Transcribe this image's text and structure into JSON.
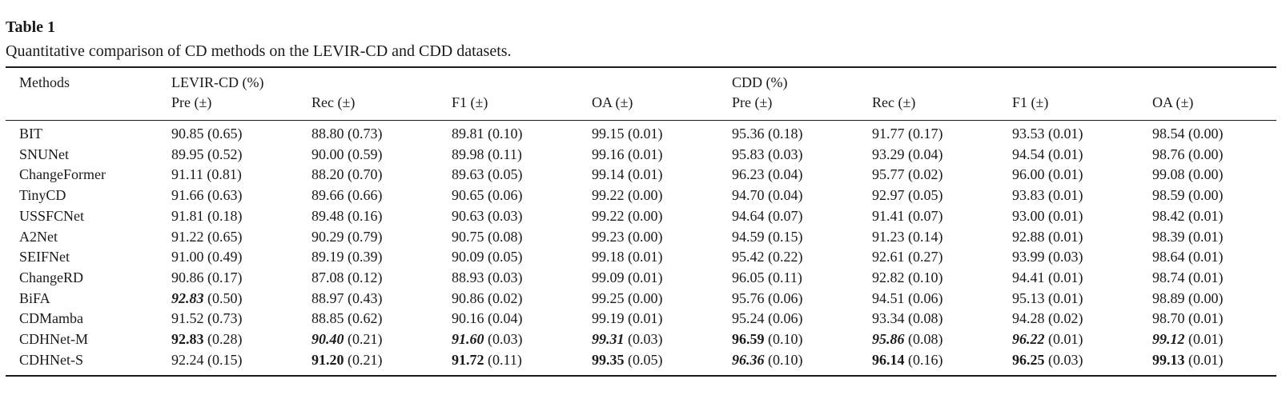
{
  "caption": {
    "label": "Table 1",
    "text": "Quantitative comparison of CD methods on the LEVIR-CD and CDD datasets."
  },
  "table": {
    "method_header": "Methods",
    "group_headers": [
      "LEVIR-CD (%)",
      "CDD (%)"
    ],
    "metric_headers": [
      "Pre (±)",
      "Rec (±)",
      "F1 (±)",
      "OA (±)",
      "Pre (±)",
      "Rec (±)",
      "F1 (±)",
      "OA (±)"
    ],
    "rows": [
      {
        "method": "BIT",
        "cells": [
          {
            "v": "90.85",
            "sd": "(0.65)",
            "s": ""
          },
          {
            "v": "88.80",
            "sd": "(0.73)",
            "s": ""
          },
          {
            "v": "89.81",
            "sd": "(0.10)",
            "s": ""
          },
          {
            "v": "99.15",
            "sd": "(0.01)",
            "s": ""
          },
          {
            "v": "95.36",
            "sd": "(0.18)",
            "s": ""
          },
          {
            "v": "91.77",
            "sd": "(0.17)",
            "s": ""
          },
          {
            "v": "93.53",
            "sd": "(0.01)",
            "s": ""
          },
          {
            "v": "98.54",
            "sd": "(0.00)",
            "s": ""
          }
        ]
      },
      {
        "method": "SNUNet",
        "cells": [
          {
            "v": "89.95",
            "sd": "(0.52)",
            "s": ""
          },
          {
            "v": "90.00",
            "sd": "(0.59)",
            "s": ""
          },
          {
            "v": "89.98",
            "sd": "(0.11)",
            "s": ""
          },
          {
            "v": "99.16",
            "sd": "(0.01)",
            "s": ""
          },
          {
            "v": "95.83",
            "sd": "(0.03)",
            "s": ""
          },
          {
            "v": "93.29",
            "sd": "(0.04)",
            "s": ""
          },
          {
            "v": "94.54",
            "sd": "(0.01)",
            "s": ""
          },
          {
            "v": "98.76",
            "sd": "(0.00)",
            "s": ""
          }
        ]
      },
      {
        "method": "ChangeFormer",
        "cells": [
          {
            "v": "91.11",
            "sd": "(0.81)",
            "s": ""
          },
          {
            "v": "88.20",
            "sd": "(0.70)",
            "s": ""
          },
          {
            "v": "89.63",
            "sd": "(0.05)",
            "s": ""
          },
          {
            "v": "99.14",
            "sd": "(0.01)",
            "s": ""
          },
          {
            "v": "96.23",
            "sd": "(0.04)",
            "s": ""
          },
          {
            "v": "95.77",
            "sd": "(0.02)",
            "s": ""
          },
          {
            "v": "96.00",
            "sd": "(0.01)",
            "s": ""
          },
          {
            "v": "99.08",
            "sd": "(0.00)",
            "s": ""
          }
        ]
      },
      {
        "method": "TinyCD",
        "cells": [
          {
            "v": "91.66",
            "sd": "(0.63)",
            "s": ""
          },
          {
            "v": "89.66",
            "sd": "(0.66)",
            "s": ""
          },
          {
            "v": "90.65",
            "sd": "(0.06)",
            "s": ""
          },
          {
            "v": "99.22",
            "sd": "(0.00)",
            "s": ""
          },
          {
            "v": "94.70",
            "sd": "(0.04)",
            "s": ""
          },
          {
            "v": "92.97",
            "sd": "(0.05)",
            "s": ""
          },
          {
            "v": "93.83",
            "sd": "(0.01)",
            "s": ""
          },
          {
            "v": "98.59",
            "sd": "(0.00)",
            "s": ""
          }
        ]
      },
      {
        "method": "USSFCNet",
        "cells": [
          {
            "v": "91.81",
            "sd": "(0.18)",
            "s": ""
          },
          {
            "v": "89.48",
            "sd": "(0.16)",
            "s": ""
          },
          {
            "v": "90.63",
            "sd": "(0.03)",
            "s": ""
          },
          {
            "v": "99.22",
            "sd": "(0.00)",
            "s": ""
          },
          {
            "v": "94.64",
            "sd": "(0.07)",
            "s": ""
          },
          {
            "v": "91.41",
            "sd": "(0.07)",
            "s": ""
          },
          {
            "v": "93.00",
            "sd": "(0.01)",
            "s": ""
          },
          {
            "v": "98.42",
            "sd": "(0.01)",
            "s": ""
          }
        ]
      },
      {
        "method": "A2Net",
        "cells": [
          {
            "v": "91.22",
            "sd": "(0.65)",
            "s": ""
          },
          {
            "v": "90.29",
            "sd": "(0.79)",
            "s": ""
          },
          {
            "v": "90.75",
            "sd": "(0.08)",
            "s": ""
          },
          {
            "v": "99.23",
            "sd": "(0.00)",
            "s": ""
          },
          {
            "v": "94.59",
            "sd": "(0.15)",
            "s": ""
          },
          {
            "v": "91.23",
            "sd": "(0.14)",
            "s": ""
          },
          {
            "v": "92.88",
            "sd": "(0.01)",
            "s": ""
          },
          {
            "v": "98.39",
            "sd": "(0.01)",
            "s": ""
          }
        ]
      },
      {
        "method": "SEIFNet",
        "cells": [
          {
            "v": "91.00",
            "sd": "(0.49)",
            "s": ""
          },
          {
            "v": "89.19",
            "sd": "(0.39)",
            "s": ""
          },
          {
            "v": "90.09",
            "sd": "(0.05)",
            "s": ""
          },
          {
            "v": "99.18",
            "sd": "(0.01)",
            "s": ""
          },
          {
            "v": "95.42",
            "sd": "(0.22)",
            "s": ""
          },
          {
            "v": "92.61",
            "sd": "(0.27)",
            "s": ""
          },
          {
            "v": "93.99",
            "sd": "(0.03)",
            "s": ""
          },
          {
            "v": "98.64",
            "sd": "(0.01)",
            "s": ""
          }
        ]
      },
      {
        "method": "ChangeRD",
        "cells": [
          {
            "v": "90.86",
            "sd": "(0.17)",
            "s": ""
          },
          {
            "v": "87.08",
            "sd": "(0.12)",
            "s": ""
          },
          {
            "v": "88.93",
            "sd": "(0.03)",
            "s": ""
          },
          {
            "v": "99.09",
            "sd": "(0.01)",
            "s": ""
          },
          {
            "v": "96.05",
            "sd": "(0.11)",
            "s": ""
          },
          {
            "v": "92.82",
            "sd": "(0.10)",
            "s": ""
          },
          {
            "v": "94.41",
            "sd": "(0.01)",
            "s": ""
          },
          {
            "v": "98.74",
            "sd": "(0.01)",
            "s": ""
          }
        ]
      },
      {
        "method": "BiFA",
        "cells": [
          {
            "v": "92.83",
            "sd": "(0.50)",
            "s": "bi"
          },
          {
            "v": "88.97",
            "sd": "(0.43)",
            "s": ""
          },
          {
            "v": "90.86",
            "sd": "(0.02)",
            "s": ""
          },
          {
            "v": "99.25",
            "sd": "(0.00)",
            "s": ""
          },
          {
            "v": "95.76",
            "sd": "(0.06)",
            "s": ""
          },
          {
            "v": "94.51",
            "sd": "(0.06)",
            "s": ""
          },
          {
            "v": "95.13",
            "sd": "(0.01)",
            "s": ""
          },
          {
            "v": "98.89",
            "sd": "(0.00)",
            "s": ""
          }
        ]
      },
      {
        "method": "CDMamba",
        "cells": [
          {
            "v": "91.52",
            "sd": "(0.73)",
            "s": ""
          },
          {
            "v": "88.85",
            "sd": "(0.62)",
            "s": ""
          },
          {
            "v": "90.16",
            "sd": "(0.04)",
            "s": ""
          },
          {
            "v": "99.19",
            "sd": "(0.01)",
            "s": ""
          },
          {
            "v": "95.24",
            "sd": "(0.06)",
            "s": ""
          },
          {
            "v": "93.34",
            "sd": "(0.08)",
            "s": ""
          },
          {
            "v": "94.28",
            "sd": "(0.02)",
            "s": ""
          },
          {
            "v": "98.70",
            "sd": "(0.01)",
            "s": ""
          }
        ]
      },
      {
        "method": "CDHNet-M",
        "cells": [
          {
            "v": "92.83",
            "sd": "(0.28)",
            "s": "b"
          },
          {
            "v": "90.40",
            "sd": "(0.21)",
            "s": "bi"
          },
          {
            "v": "91.60",
            "sd": "(0.03)",
            "s": "bi"
          },
          {
            "v": "99.31",
            "sd": "(0.03)",
            "s": "bi"
          },
          {
            "v": "96.59",
            "sd": "(0.10)",
            "s": "b"
          },
          {
            "v": "95.86",
            "sd": "(0.08)",
            "s": "bi"
          },
          {
            "v": "96.22",
            "sd": "(0.01)",
            "s": "bi"
          },
          {
            "v": "99.12",
            "sd": "(0.01)",
            "s": "bi"
          }
        ]
      },
      {
        "method": "CDHNet-S",
        "cells": [
          {
            "v": "92.24",
            "sd": "(0.15)",
            "s": ""
          },
          {
            "v": "91.20",
            "sd": "(0.21)",
            "s": "b"
          },
          {
            "v": "91.72",
            "sd": "(0.11)",
            "s": "b"
          },
          {
            "v": "99.35",
            "sd": "(0.05)",
            "s": "b"
          },
          {
            "v": "96.36",
            "sd": "(0.10)",
            "s": "bi"
          },
          {
            "v": "96.14",
            "sd": "(0.16)",
            "s": "b"
          },
          {
            "v": "96.25",
            "sd": "(0.03)",
            "s": "b"
          },
          {
            "v": "99.13",
            "sd": "(0.01)",
            "s": "b"
          }
        ]
      }
    ]
  }
}
